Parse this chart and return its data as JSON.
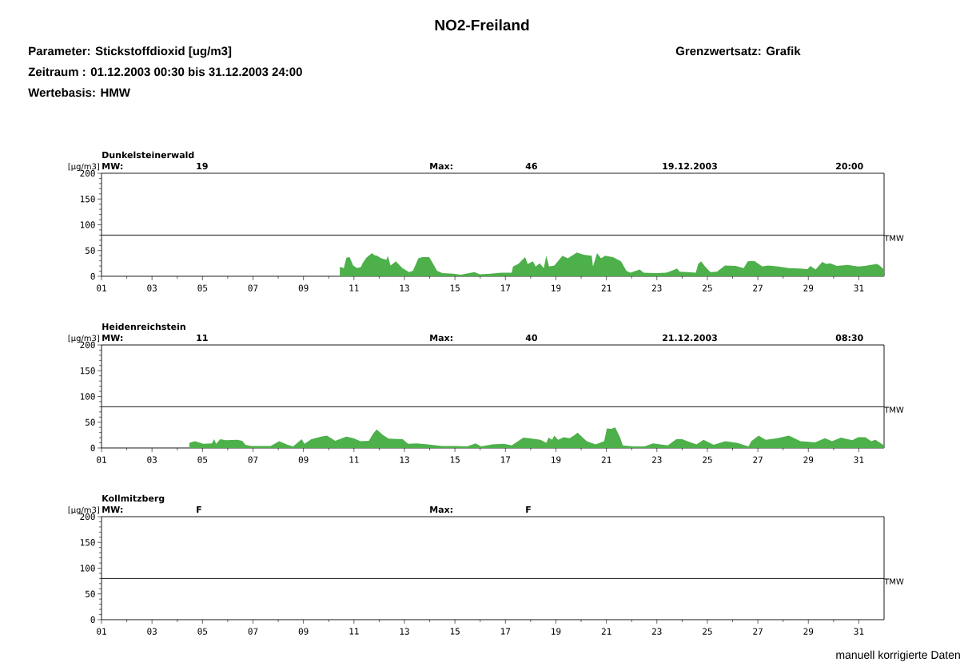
{
  "chart_data": [
    {
      "type": "area",
      "title": "Dunkelsteinerwald",
      "ylabel": "[µg/m3]",
      "color": "#4db04a",
      "annotations": [
        "NO2-Freiland",
        "Parameter: Stickstoffdioxid [ug/m3]",
        "Zeitraum : 01.12.2003 00:30 bis 31.12.2003 24:00",
        "Wertebasis: HMW",
        "Grenzwertsatz: Grafik",
        "MW:",
        "19",
        "Max:",
        "46",
        "19.12.2003",
        "20:00"
      ],
      "x": [
        10.44,
        10.6,
        10.7,
        10.83,
        10.97,
        11.13,
        11.28,
        11.34,
        11.49,
        11.71,
        11.81,
        11.92,
        12.08,
        12.29,
        12.34,
        12.45,
        12.66,
        12.76,
        12.92,
        13.18,
        13.34,
        13.55,
        13.71,
        13.98,
        14.08,
        14.29,
        14.5,
        14.93,
        15.24,
        15.56,
        15.77,
        15.98,
        16.41,
        16.83,
        17.25,
        17.3,
        17.51,
        17.78,
        17.88,
        18.09,
        18.2,
        18.36,
        18.52,
        18.62,
        18.73,
        18.94,
        19.26,
        19.47,
        19.83,
        20.1,
        20.42,
        20.47,
        20.63,
        20.79,
        20.95,
        21.26,
        21.58,
        21.79,
        21.95,
        22.32,
        22.48,
        22.95,
        23.37,
        23.59,
        23.8,
        23.9,
        24.22,
        24.54,
        24.64,
        24.75,
        24.91,
        25.12,
        25.38,
        25.7,
        26.12,
        26.44,
        26.6,
        26.86,
        27.18,
        27.39,
        27.81,
        28.23,
        28.65,
        28.97,
        29.08,
        29.29,
        29.55,
        29.71,
        29.87,
        30.13,
        30.55,
        30.98,
        31.24,
        31.72,
        31.82,
        32
      ],
      "values": [
        18,
        16,
        36,
        37,
        21,
        16,
        18,
        25,
        36,
        45,
        41,
        40,
        35,
        32,
        40,
        21,
        29,
        24,
        16,
        8,
        11,
        35,
        37,
        37,
        29,
        11,
        6,
        5,
        3,
        6,
        8,
        4,
        5,
        7,
        7,
        19,
        24,
        37,
        24,
        29,
        19,
        25,
        16,
        40,
        19,
        21,
        40,
        35,
        46,
        42,
        40,
        19,
        45,
        35,
        40,
        37,
        29,
        11,
        7,
        13,
        7,
        6,
        7,
        11,
        15,
        9,
        8,
        7,
        24,
        29,
        19,
        8,
        9,
        21,
        20,
        16,
        29,
        30,
        19,
        21,
        19,
        16,
        15,
        14,
        20,
        13,
        28,
        24,
        25,
        20,
        22,
        19,
        20,
        24,
        21,
        13
      ],
      "xlim": [
        1,
        32
      ],
      "ylim": [
        0,
        200
      ],
      "xticks": [
        {
          "value": 1,
          "label": "01"
        },
        {
          "value": 3,
          "label": "03"
        },
        {
          "value": 5,
          "label": "05"
        },
        {
          "value": 7,
          "label": "07"
        },
        {
          "value": 9,
          "label": "09"
        },
        {
          "value": 11,
          "label": "11"
        },
        {
          "value": 13,
          "label": "13"
        },
        {
          "value": 15,
          "label": "15"
        },
        {
          "value": 17,
          "label": "17"
        },
        {
          "value": 19,
          "label": "19"
        },
        {
          "value": 21,
          "label": "21"
        },
        {
          "value": 23,
          "label": "23"
        },
        {
          "value": 25,
          "label": "25"
        },
        {
          "value": 27,
          "label": "27"
        },
        {
          "value": 29,
          "label": "29"
        },
        {
          "value": 31,
          "label": "31"
        }
      ],
      "yticks": [
        0,
        50,
        100,
        150,
        200
      ],
      "ref_lines": [
        {
          "axis": "y",
          "value": 80,
          "label": "TMW"
        }
      ]
    },
    {
      "type": "area",
      "title": "Heidenreichstein",
      "ylabel": "[µg/m3]",
      "color": "#4db04a",
      "annotations": [
        "MW:",
        "11",
        "Max:",
        "40",
        "21.12.2003",
        "08:30"
      ],
      "x": [
        4.48,
        4.7,
        5.03,
        5.37,
        5.46,
        5.54,
        5.7,
        5.92,
        6.37,
        6.57,
        6.7,
        6.92,
        7.37,
        7.7,
        8.04,
        8.37,
        8.59,
        8.93,
        9.04,
        9.31,
        9.7,
        9.93,
        10.26,
        10.7,
        10.98,
        11.26,
        11.59,
        11.76,
        11.9,
        12.15,
        12.37,
        12.93,
        13.15,
        13.48,
        13.93,
        14.48,
        15.04,
        15.48,
        15.82,
        16.04,
        16.48,
        16.93,
        17.25,
        17.71,
        17.94,
        18.39,
        18.62,
        18.71,
        18.85,
        18.94,
        19.08,
        19.31,
        19.54,
        19.71,
        19.86,
        20.05,
        20.22,
        20.57,
        20.91,
        21.02,
        21.2,
        21.35,
        21.54,
        21.65,
        22.05,
        22.51,
        22.85,
        23.43,
        23.77,
        24.0,
        24.34,
        24.57,
        24.85,
        25.25,
        25.71,
        26.17,
        26.63,
        26.74,
        27.03,
        27.31,
        27.77,
        28.23,
        28.69,
        29.26,
        29.66,
        29.94,
        30.29,
        30.74,
        30.97,
        31.26,
        31.49,
        31.66,
        32
      ],
      "values": [
        10,
        13,
        8,
        9,
        17,
        8,
        17,
        15,
        16,
        14,
        6,
        4,
        4,
        4,
        13,
        6,
        3,
        17,
        8,
        17,
        22,
        24,
        14,
        22,
        19,
        13,
        14,
        28,
        36,
        25,
        18,
        17,
        8,
        9,
        7,
        4,
        4,
        3,
        9,
        3,
        7,
        8,
        5,
        20,
        19,
        16,
        10,
        20,
        16,
        24,
        16,
        21,
        19,
        24,
        30,
        21,
        13,
        7,
        13,
        38,
        37,
        40,
        21,
        5,
        3,
        3,
        9,
        5,
        17,
        17,
        11,
        7,
        16,
        6,
        13,
        10,
        3,
        13,
        24,
        16,
        19,
        24,
        13,
        11,
        19,
        13,
        20,
        15,
        21,
        21,
        13,
        16,
        5
      ],
      "xlim": [
        1,
        32
      ],
      "ylim": [
        0,
        200
      ],
      "xticks": [
        {
          "value": 1,
          "label": "01"
        },
        {
          "value": 3,
          "label": "03"
        },
        {
          "value": 5,
          "label": "05"
        },
        {
          "value": 7,
          "label": "07"
        },
        {
          "value": 9,
          "label": "09"
        },
        {
          "value": 11,
          "label": "11"
        },
        {
          "value": 13,
          "label": "13"
        },
        {
          "value": 15,
          "label": "15"
        },
        {
          "value": 17,
          "label": "17"
        },
        {
          "value": 19,
          "label": "19"
        },
        {
          "value": 21,
          "label": "21"
        },
        {
          "value": 23,
          "label": "23"
        },
        {
          "value": 25,
          "label": "25"
        },
        {
          "value": 27,
          "label": "27"
        },
        {
          "value": 29,
          "label": "29"
        },
        {
          "value": 31,
          "label": "31"
        }
      ],
      "yticks": [
        0,
        50,
        100,
        150,
        200
      ],
      "ref_lines": [
        {
          "axis": "y",
          "value": 80,
          "label": "TMW"
        }
      ]
    },
    {
      "type": "area",
      "title": "Kollmitzberg",
      "ylabel": "[µg/m3]",
      "annotations": [
        "MW:",
        "F",
        "Max:",
        "F",
        "manuell korrigierte Daten"
      ],
      "xlim": [
        1,
        32
      ],
      "ylim": [
        0,
        200
      ],
      "xticks": [
        {
          "value": 1,
          "label": "01"
        },
        {
          "value": 3,
          "label": "03"
        },
        {
          "value": 5,
          "label": "05"
        },
        {
          "value": 7,
          "label": "07"
        },
        {
          "value": 9,
          "label": "09"
        },
        {
          "value": 11,
          "label": "11"
        },
        {
          "value": 13,
          "label": "13"
        },
        {
          "value": 15,
          "label": "15"
        },
        {
          "value": 17,
          "label": "17"
        },
        {
          "value": 19,
          "label": "19"
        },
        {
          "value": 21,
          "label": "21"
        },
        {
          "value": 23,
          "label": "23"
        },
        {
          "value": 25,
          "label": "25"
        },
        {
          "value": 27,
          "label": "27"
        },
        {
          "value": 29,
          "label": "29"
        },
        {
          "value": 31,
          "label": "31"
        }
      ],
      "yticks": [
        0,
        50,
        100,
        150,
        200
      ],
      "ref_lines": [
        {
          "axis": "y",
          "value": 80,
          "label": "TMW"
        }
      ]
    }
  ]
}
